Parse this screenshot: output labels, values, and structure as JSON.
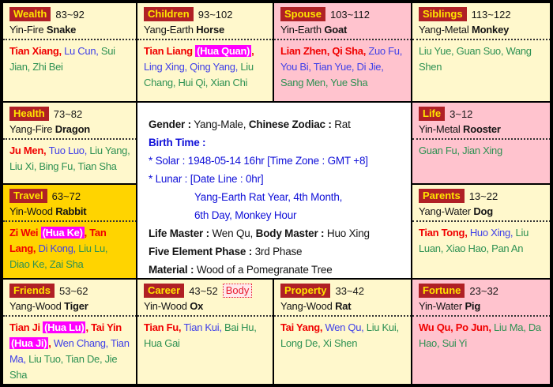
{
  "palette": {
    "palace_label_bg": "#B02025",
    "palace_label_text": "#FFE400",
    "major_star": "#F00000",
    "minor_star_blue": "#4040E8",
    "support_star_green": "#2E9153",
    "hua_highlight_bg": "#FF00FF",
    "cell_bg_cream": "#FFF8CC",
    "cell_bg_pink": "#FFC3CE",
    "cell_bg_gold": "#FFD400",
    "center_text_blue": "#1010D8",
    "body_badge_red": "#E8192C"
  },
  "center": {
    "gender_label": "Gender :",
    "gender_value": "Yang-Male,",
    "zodiac_label": "Chinese Zodiac :",
    "zodiac_value": "Rat",
    "birth_time_label": "Birth Time :",
    "solar_line": "* Solar : 1948-05-14 16hr [Time Zone : GMT +8]",
    "lunar_line": "* Lunar : [Date Line : 0hr]",
    "lunar_detail_1": "Yang-Earth Rat Year, 4th Month,",
    "lunar_detail_2": "6th Day, Monkey Hour",
    "life_master_label": "Life Master :",
    "life_master_value": "Wen Qu,",
    "body_master_label": "Body Master :",
    "body_master_value": "Huo Xing",
    "phase_label": "Five Element Phase :",
    "phase_value": "3rd Phase",
    "material_label": "Material :",
    "material_value": "Wood of a Pomegranate Tree"
  },
  "palaces": [
    {
      "id": "wealth",
      "label": "Wealth",
      "age_range": "83~92",
      "stem": "Yin-Fire",
      "branch": "Snake",
      "bg": "cream",
      "stars": [
        {
          "name": "Tian Xiang",
          "type": "major"
        },
        {
          "name": "Lu Cun",
          "type": "blue"
        },
        {
          "name": "Sui Jian",
          "type": "green"
        },
        {
          "name": "Zhi Bei",
          "type": "green"
        }
      ]
    },
    {
      "id": "children",
      "label": "Children",
      "age_range": "93~102",
      "stem": "Yang-Earth",
      "branch": "Horse",
      "bg": "cream",
      "stars": [
        {
          "name": "Tian Liang",
          "type": "major",
          "hua": "(Hua Quan)"
        },
        {
          "name": "Ling Xing",
          "type": "blue"
        },
        {
          "name": "Qing Yang",
          "type": "blue"
        },
        {
          "name": "Liu Chang",
          "type": "green"
        },
        {
          "name": "Hui Qi",
          "type": "green"
        },
        {
          "name": "Xian Chi",
          "type": "green"
        }
      ]
    },
    {
      "id": "spouse",
      "label": "Spouse",
      "age_range": "103~112",
      "stem": "Yin-Earth",
      "branch": "Goat",
      "bg": "pink",
      "stars": [
        {
          "name": "Lian Zhen",
          "type": "major"
        },
        {
          "name": "Qi Sha",
          "type": "major"
        },
        {
          "name": "Zuo Fu",
          "type": "blue"
        },
        {
          "name": "You Bi",
          "type": "blue"
        },
        {
          "name": "Tian Yue",
          "type": "blue"
        },
        {
          "name": "Di Jie",
          "type": "blue"
        },
        {
          "name": "Sang Men",
          "type": "green"
        },
        {
          "name": "Yue Sha",
          "type": "green"
        }
      ]
    },
    {
      "id": "siblings",
      "label": "Siblings",
      "age_range": "113~122",
      "stem": "Yang-Metal",
      "branch": "Monkey",
      "bg": "cream",
      "stars": [
        {
          "name": "Liu Yue",
          "type": "green"
        },
        {
          "name": "Guan Suo",
          "type": "green"
        },
        {
          "name": "Wang Shen",
          "type": "green"
        }
      ]
    },
    {
      "id": "health",
      "label": "Health",
      "age_range": "73~82",
      "stem": "Yang-Fire",
      "branch": "Dragon",
      "bg": "cream",
      "stars": [
        {
          "name": "Ju Men",
          "type": "major"
        },
        {
          "name": "Tuo Luo",
          "type": "blue"
        },
        {
          "name": "Liu Yang",
          "type": "green"
        },
        {
          "name": "Liu Xi",
          "type": "green"
        },
        {
          "name": "Bing Fu",
          "type": "green"
        },
        {
          "name": "Tian Sha",
          "type": "green"
        }
      ]
    },
    {
      "id": "life",
      "label": "Life",
      "age_range": "3~12",
      "stem": "Yin-Metal",
      "branch": "Rooster",
      "bg": "pink",
      "stars": [
        {
          "name": "Guan Fu",
          "type": "green"
        },
        {
          "name": "Jian Xing",
          "type": "green"
        }
      ]
    },
    {
      "id": "travel",
      "label": "Travel",
      "age_range": "63~72",
      "stem": "Yin-Wood",
      "branch": "Rabbit",
      "bg": "gold",
      "stars": [
        {
          "name": "Zi Wei",
          "type": "major",
          "hua": "(Hua Ke)"
        },
        {
          "name": "Tan Lang",
          "type": "major"
        },
        {
          "name": "Di Kong",
          "type": "blue"
        },
        {
          "name": "Liu Lu",
          "type": "green"
        },
        {
          "name": "Diao Ke",
          "type": "green"
        },
        {
          "name": "Zai Sha",
          "type": "green"
        }
      ]
    },
    {
      "id": "parents",
      "label": "Parents",
      "age_range": "13~22",
      "stem": "Yang-Water",
      "branch": "Dog",
      "bg": "cream",
      "stars": [
        {
          "name": "Tian Tong",
          "type": "major"
        },
        {
          "name": "Huo Xing",
          "type": "blue"
        },
        {
          "name": "Liu Luan",
          "type": "green"
        },
        {
          "name": "Xiao Hao",
          "type": "green"
        },
        {
          "name": "Pan An",
          "type": "green"
        }
      ]
    },
    {
      "id": "friends",
      "label": "Friends",
      "age_range": "53~62",
      "stem": "Yang-Wood",
      "branch": "Tiger",
      "bg": "cream",
      "stars": [
        {
          "name": "Tian Ji",
          "type": "major",
          "hua": "(Hua Lu)"
        },
        {
          "name": "Tai Yin",
          "type": "major",
          "hua": "(Hua Ji)"
        },
        {
          "name": "Wen Chang",
          "type": "blue"
        },
        {
          "name": "Tian Ma",
          "type": "blue"
        },
        {
          "name": "Liu Tuo",
          "type": "green"
        },
        {
          "name": "Tian De",
          "type": "green"
        },
        {
          "name": "Jie Sha",
          "type": "green"
        }
      ]
    },
    {
      "id": "career",
      "label": "Career",
      "age_range": "43~52",
      "stem": "Yin-Wood",
      "branch": "Ox",
      "bg": "cream",
      "badge": "Body",
      "stars": [
        {
          "name": "Tian Fu",
          "type": "major"
        },
        {
          "name": "Tian Kui",
          "type": "blue"
        },
        {
          "name": "Bai Hu",
          "type": "green"
        },
        {
          "name": "Hua Gai",
          "type": "green"
        }
      ]
    },
    {
      "id": "property",
      "label": "Property",
      "age_range": "33~42",
      "stem": "Yang-Wood",
      "branch": "Rat",
      "bg": "cream",
      "stars": [
        {
          "name": "Tai Yang",
          "type": "major"
        },
        {
          "name": "Wen Qu",
          "type": "blue"
        },
        {
          "name": "Liu Kui",
          "type": "green"
        },
        {
          "name": "Long De",
          "type": "green"
        },
        {
          "name": "Xi Shen",
          "type": "green"
        }
      ]
    },
    {
      "id": "fortune",
      "label": "Fortune",
      "age_range": "23~32",
      "stem": "Yin-Water",
      "branch": "Pig",
      "bg": "pink",
      "stars": [
        {
          "name": "Wu Qu",
          "type": "major"
        },
        {
          "name": "Po Jun",
          "type": "major"
        },
        {
          "name": "Liu Ma",
          "type": "green"
        },
        {
          "name": "Da Hao",
          "type": "green"
        },
        {
          "name": "Sui Yi",
          "type": "green"
        }
      ]
    }
  ]
}
